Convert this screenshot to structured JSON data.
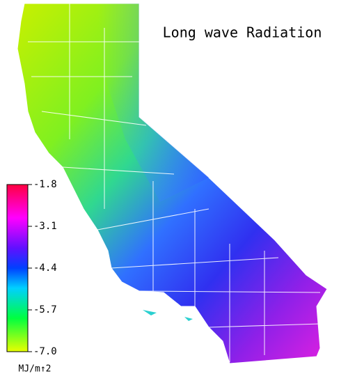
{
  "title": "Long wave Radiation",
  "colorbar": {
    "range": [
      -7,
      -1.8
    ],
    "ticks": [
      -1.8,
      -3.1,
      -4.4,
      -5.7,
      {
        "value": -7,
        "label": "-7.0"
      }
    ],
    "unit": "MJ/m↑2"
  }
}
